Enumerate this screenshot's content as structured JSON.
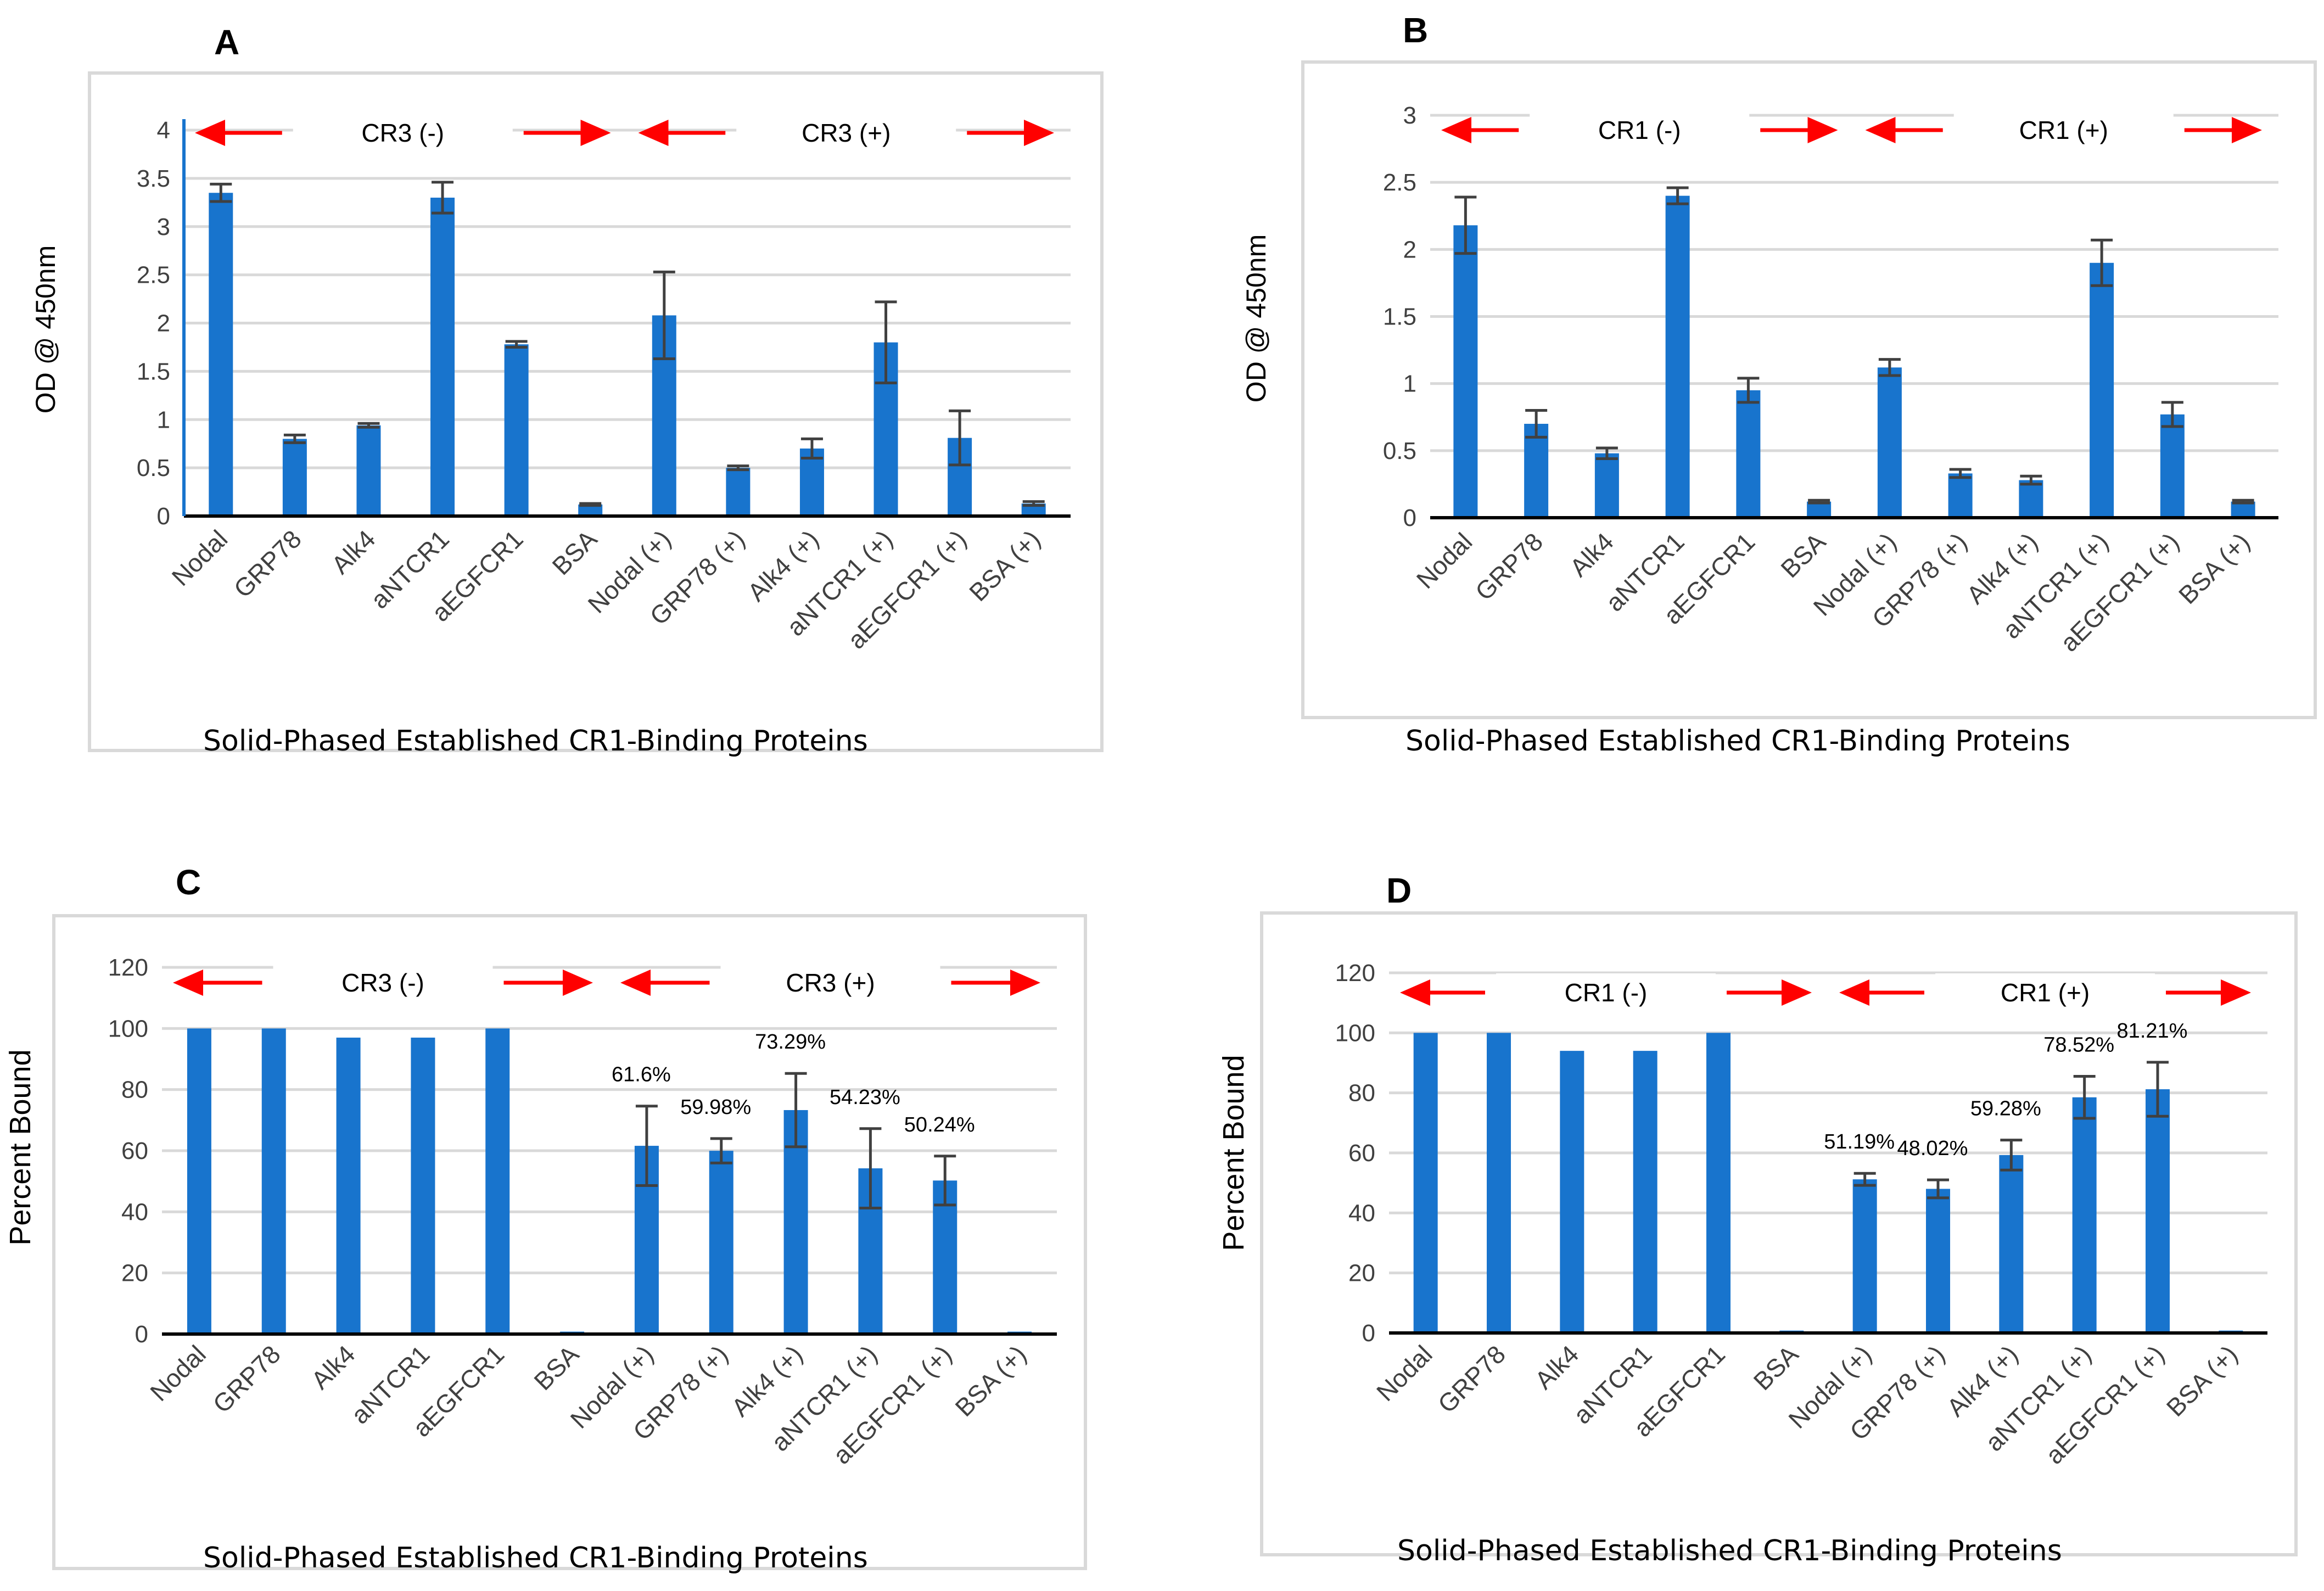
{
  "shared": {
    "x_caption": "Solid-Phased Established CR1-Binding Proteins",
    "colors": {
      "bar": "#1874cd",
      "arrow": "#ff0000",
      "grid": "#d9d9d9",
      "axis": "#000000",
      "error": "#404040"
    }
  },
  "chart_data": [
    {
      "panel": "A",
      "type": "bar",
      "ylabel": "OD @ 450nm",
      "xlabel": "Solid-Phased Established CR1-Binding Proteins",
      "ylim": [
        0,
        4
      ],
      "yticks": [
        0,
        0.5,
        1,
        1.5,
        2,
        2.5,
        3,
        3.5,
        4
      ],
      "ytick_labels": [
        "0",
        "0.5",
        "1",
        "1.5",
        "2",
        "2.5",
        "3",
        "3.5",
        "4"
      ],
      "categories": [
        "Nodal",
        "GRP78",
        "Alk4",
        "aNTCR1",
        "aEGFCR1",
        "BSA",
        "Nodal (+)",
        "GRP78 (+)",
        "Alk4 (+)",
        "aNTCR1 (+)",
        "aEGFCR1 (+)",
        "BSA (+)"
      ],
      "values": [
        3.35,
        0.8,
        0.94,
        3.3,
        1.78,
        0.12,
        2.08,
        0.5,
        0.7,
        1.8,
        0.81,
        0.13
      ],
      "errors": [
        0.09,
        0.04,
        0.02,
        0.16,
        0.03,
        0.01,
        0.45,
        0.02,
        0.1,
        0.42,
        0.28,
        0.02
      ],
      "group_labels": [
        "CR3 (-)",
        "CR3 (+)"
      ],
      "data_labels": []
    },
    {
      "panel": "B",
      "type": "bar",
      "ylabel": "OD @ 450nm",
      "xlabel": "Solid-Phased Established CR1-Binding Proteins",
      "ylim": [
        0,
        3
      ],
      "yticks": [
        0,
        0.5,
        1,
        1.5,
        2,
        2.5,
        3
      ],
      "ytick_labels": [
        "0",
        "0.5",
        "1",
        "1.5",
        "2",
        "2.5",
        "3"
      ],
      "categories": [
        "Nodal",
        "GRP78",
        "Alk4",
        "aNTCR1",
        "aEGFCR1",
        "BSA",
        "Nodal (+)",
        "GRP78 (+)",
        "Alk4 (+)",
        "aNTCR1 (+)",
        "aEGFCR1 (+)",
        "BSA (+)"
      ],
      "values": [
        2.18,
        0.7,
        0.48,
        2.4,
        0.95,
        0.12,
        1.12,
        0.33,
        0.28,
        1.9,
        0.77,
        0.12
      ],
      "errors": [
        0.21,
        0.1,
        0.04,
        0.06,
        0.09,
        0.01,
        0.06,
        0.03,
        0.03,
        0.17,
        0.09,
        0.01
      ],
      "group_labels": [
        "CR1 (-)",
        "CR1 (+)"
      ],
      "data_labels": []
    },
    {
      "panel": "C",
      "type": "bar",
      "ylabel": "Percent Bound",
      "xlabel": "Solid-Phased Established CR1-Binding Proteins",
      "ylim": [
        0,
        120
      ],
      "yticks": [
        0,
        20,
        40,
        60,
        80,
        100,
        120
      ],
      "ytick_labels": [
        "0",
        "20",
        "40",
        "60",
        "80",
        "100",
        "120"
      ],
      "categories": [
        "Nodal",
        "GRP78",
        "Alk4",
        "aNTCR1",
        "aEGFCR1",
        "BSA",
        "Nodal (+)",
        "GRP78 (+)",
        "Alk4 (+)",
        "aNTCR1 (+)",
        "aEGFCR1 (+)",
        "BSA (+)"
      ],
      "values": [
        100,
        100,
        97,
        97,
        100,
        0.8,
        61.6,
        59.98,
        73.29,
        54.23,
        50.24,
        0.8
      ],
      "errors": [
        0,
        0,
        0,
        0,
        0,
        0,
        13,
        4,
        12,
        13,
        8,
        0
      ],
      "group_labels": [
        "CR3 (-)",
        "CR3 (+)"
      ],
      "data_labels": [
        "",
        "",
        "",
        "",
        "",
        "",
        "61.6%",
        "59.98%",
        "73.29%",
        "54.23%",
        "50.24%",
        ""
      ]
    },
    {
      "panel": "D",
      "type": "bar",
      "ylabel": "Percent Bound",
      "xlabel": "Solid-Phased Established CR1-Binding Proteins",
      "ylim": [
        0,
        120
      ],
      "yticks": [
        0,
        20,
        40,
        60,
        80,
        100,
        120
      ],
      "ytick_labels": [
        "0",
        "20",
        "40",
        "60",
        "80",
        "100",
        "120"
      ],
      "categories": [
        "Nodal",
        "GRP78",
        "Alk4",
        "aNTCR1",
        "aEGFCR1",
        "BSA",
        "Nodal (+)",
        "GRP78 (+)",
        "Alk4 (+)",
        "aNTCR1 (+)",
        "aEGFCR1 (+)",
        "BSA (+)"
      ],
      "values": [
        100,
        100,
        94,
        94,
        100,
        0.8,
        51.19,
        48.02,
        59.28,
        78.52,
        81.21,
        0.8
      ],
      "errors": [
        0,
        0,
        0,
        0,
        0,
        0,
        2,
        3,
        5,
        7,
        9,
        0
      ],
      "group_labels": [
        "CR1 (-)",
        "CR1 (+)"
      ],
      "data_labels": [
        "",
        "",
        "",
        "",
        "",
        "",
        "51.19%",
        "48.02%",
        "59.28%",
        "78.52%",
        "81.21%",
        ""
      ]
    }
  ]
}
